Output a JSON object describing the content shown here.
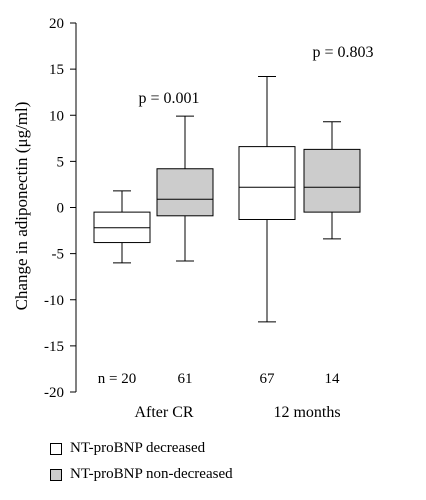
{
  "chart_data": {
    "type": "box",
    "ylabel": "Change in adiponectin (μg/ml)",
    "ylim": [
      -20,
      20
    ],
    "yticks": [
      20,
      15,
      10,
      5,
      0,
      -5,
      -10,
      -15,
      -20
    ],
    "groups": [
      {
        "label": "After CR",
        "p_value": "p = 0.001",
        "boxes": [
          {
            "series": "NT-proBNP decreased",
            "n": "n = 20",
            "whisker_low": -6.0,
            "q1": -3.8,
            "median": -2.2,
            "q3": -0.5,
            "whisker_high": 1.8
          },
          {
            "series": "NT-proBNP non-decreased",
            "n": "61",
            "whisker_low": -5.8,
            "q1": -0.9,
            "median": 0.9,
            "q3": 4.2,
            "whisker_high": 9.9
          }
        ]
      },
      {
        "label": "12 months",
        "p_value": "p = 0.803",
        "boxes": [
          {
            "series": "NT-proBNP decreased",
            "n": "67",
            "whisker_low": -12.4,
            "q1": -1.3,
            "median": 2.2,
            "q3": 6.6,
            "whisker_high": 14.2
          },
          {
            "series": "NT-proBNP non-decreased",
            "n": "14",
            "whisker_low": -3.4,
            "q1": -0.5,
            "median": 2.2,
            "q3": 6.3,
            "whisker_high": 9.3
          }
        ]
      }
    ],
    "legend": [
      {
        "label": "NT-proBNP decreased",
        "color": "#ffffff"
      },
      {
        "label": "NT-proBNP non-decreased",
        "color": "#cccccc"
      }
    ],
    "legend_position": "bottom",
    "grid": false
  }
}
